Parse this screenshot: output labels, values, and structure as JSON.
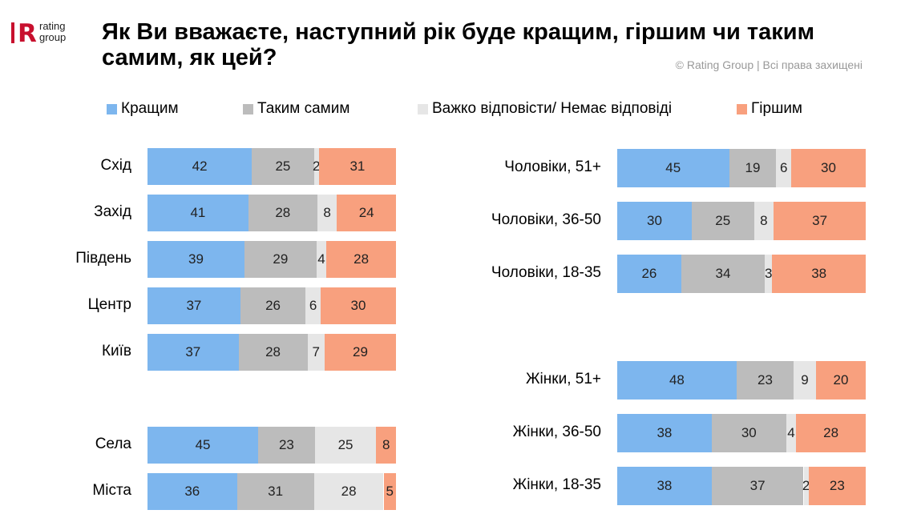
{
  "logo": {
    "line1": "rating",
    "line2": "group",
    "mark": "R"
  },
  "title": "Як Ви вважаєте, наступний рік буде кращим, гіршим чи таким самим, як цей?",
  "copyright": "© Rating Group | Всі права захищені",
  "colors": {
    "better": "#7db6ee",
    "same": "#bcbcbc",
    "hard": "#e6e6e6",
    "worse": "#f8a07e"
  },
  "chart_data": [
    {
      "type": "bar",
      "orientation": "horizontal",
      "stacked": true,
      "panel": "left",
      "legend": [
        "Кращим",
        "Таким самим",
        "Важко відповісти/ Немає відповіді",
        "Гіршим"
      ],
      "categories": [
        "Схід",
        "Захід",
        "Південь",
        "Центр",
        "Київ",
        "Села",
        "Міста"
      ],
      "series": [
        {
          "name": "Кращим",
          "values": [
            42,
            41,
            39,
            37,
            37,
            45,
            36
          ]
        },
        {
          "name": "Таким самим",
          "values": [
            25,
            28,
            29,
            26,
            28,
            23,
            31
          ]
        },
        {
          "name": "Важко відповісти/ Немає відповіді",
          "values": [
            2,
            8,
            4,
            6,
            7,
            25,
            28
          ]
        },
        {
          "name": "Гіршим",
          "values": [
            31,
            24,
            28,
            30,
            29,
            8,
            5
          ]
        }
      ]
    },
    {
      "type": "bar",
      "orientation": "horizontal",
      "stacked": true,
      "panel": "right",
      "categories": [
        "Чоловіки, 51+",
        "Чоловіки, 36-50",
        "Чоловіки, 18-35",
        "Жінки, 51+",
        "Жінки, 36-50",
        "Жінки, 18-35"
      ],
      "series": [
        {
          "name": "Кращим",
          "values": [
            45,
            30,
            26,
            48,
            38,
            38
          ]
        },
        {
          "name": "Таким самим",
          "values": [
            19,
            25,
            34,
            23,
            30,
            37
          ]
        },
        {
          "name": "Важко відповісти/ Немає відповіді",
          "values": [
            6,
            8,
            3,
            9,
            4,
            2
          ]
        },
        {
          "name": "Гіршим",
          "values": [
            30,
            37,
            38,
            20,
            28,
            23
          ]
        }
      ]
    }
  ]
}
